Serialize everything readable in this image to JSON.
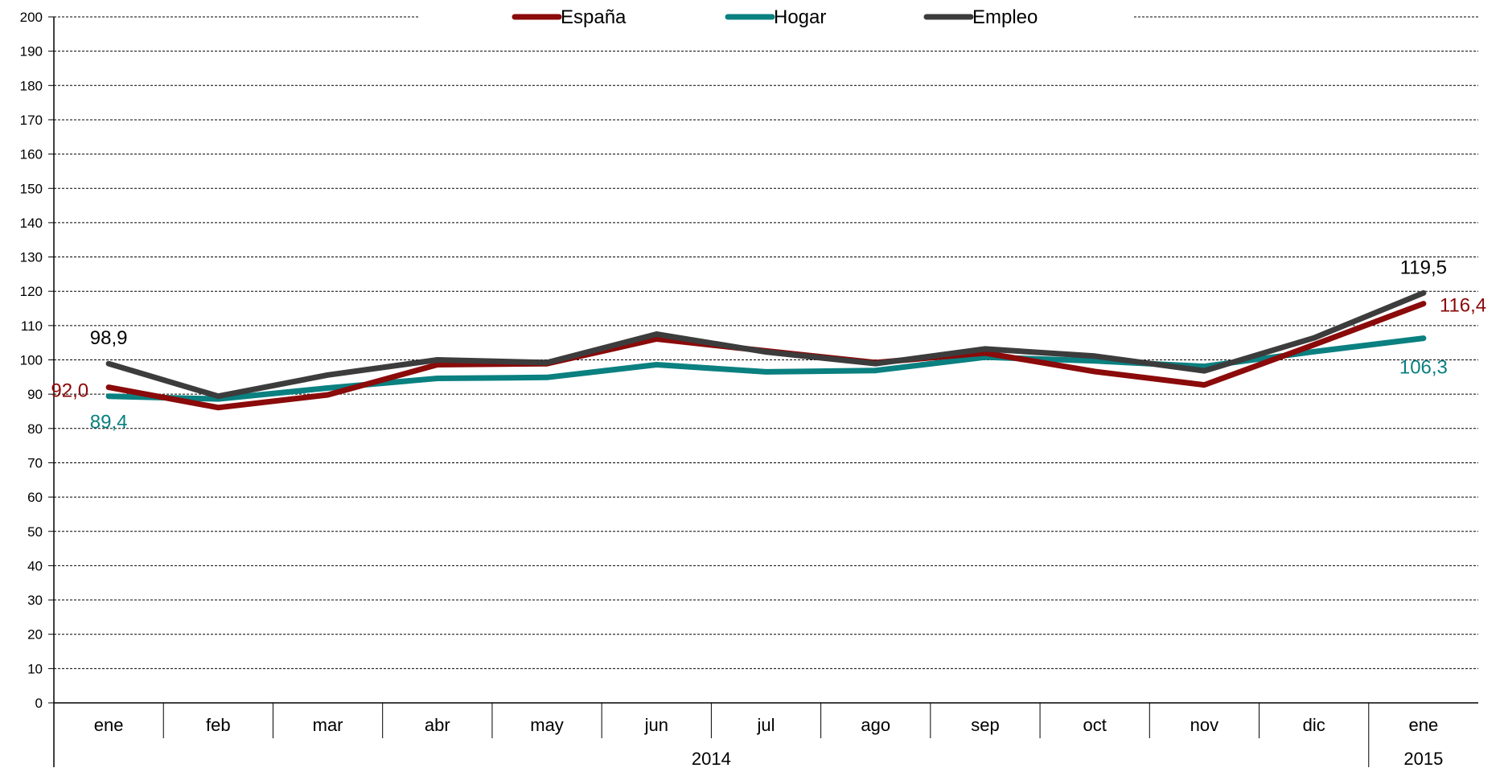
{
  "chart_data": {
    "type": "line",
    "categories": [
      "ene",
      "feb",
      "mar",
      "abr",
      "may",
      "jun",
      "jul",
      "ago",
      "sep",
      "oct",
      "nov",
      "dic",
      "ene"
    ],
    "year_groups": [
      {
        "label": "2014",
        "start": 0,
        "end": 11
      },
      {
        "label": "2015",
        "start": 12,
        "end": 12
      }
    ],
    "ylim": [
      0,
      200
    ],
    "ytick_step": 10,
    "grid": "horizontal-dashed",
    "legend_position": "top",
    "series": [
      {
        "name": "España",
        "color": "#8b0a0a",
        "values": [
          92.0,
          86.1,
          89.8,
          98.6,
          98.9,
          106.1,
          102.6,
          99.2,
          102.0,
          96.6,
          92.7,
          104.4,
          116.4
        ]
      },
      {
        "name": "Hogar",
        "color": "#0a8080",
        "values": [
          89.4,
          88.6,
          91.8,
          94.6,
          94.9,
          98.6,
          96.5,
          96.9,
          100.8,
          99.7,
          98.1,
          102.4,
          106.3
        ]
      },
      {
        "name": "Empleo",
        "color": "#3c3c3c",
        "values": [
          98.9,
          89.4,
          95.6,
          100.0,
          99.2,
          107.5,
          102.3,
          98.9,
          103.2,
          101.1,
          96.8,
          106.4,
          119.5
        ]
      }
    ],
    "annotations": [
      {
        "text": "92,0",
        "series": "España",
        "index": 0
      },
      {
        "text": "89,4",
        "series": "Hogar",
        "index": 0
      },
      {
        "text": "98,9",
        "series": "Empleo",
        "index": 0
      },
      {
        "text": "116,4",
        "series": "España",
        "index": 12
      },
      {
        "text": "106,3",
        "series": "Hogar",
        "index": 12
      },
      {
        "text": "119,5",
        "series": "Empleo",
        "index": 12
      }
    ]
  }
}
